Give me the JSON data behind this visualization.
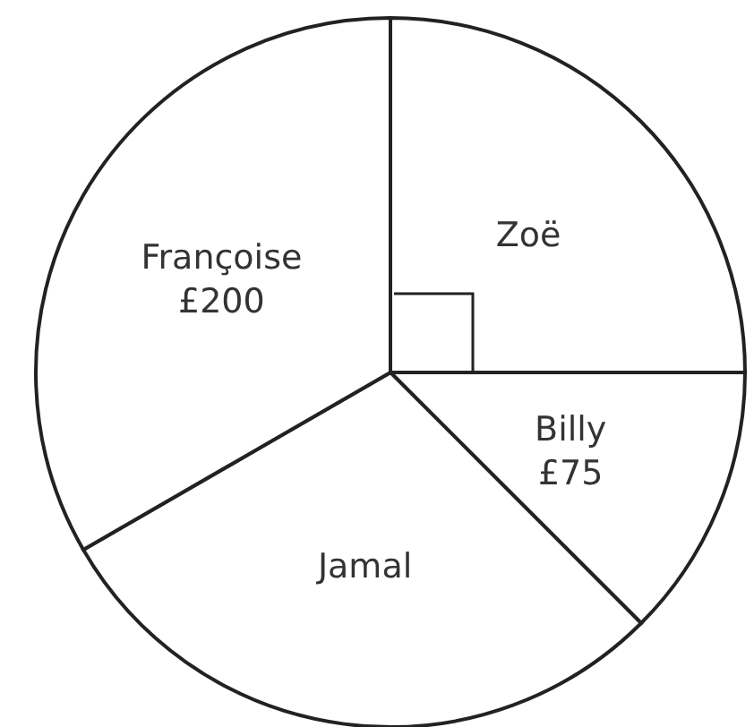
{
  "chart_data": {
    "type": "pie",
    "categories": [
      "Zoë",
      "Billy",
      "Jamal",
      "Françoise"
    ],
    "values": [
      150,
      75,
      175,
      200
    ],
    "colors": [
      "#ffffff",
      "#ffffff",
      "#ffffff",
      "#ffffff"
    ],
    "value_labels": [
      null,
      "£75",
      null,
      "£200"
    ]
  }
}
